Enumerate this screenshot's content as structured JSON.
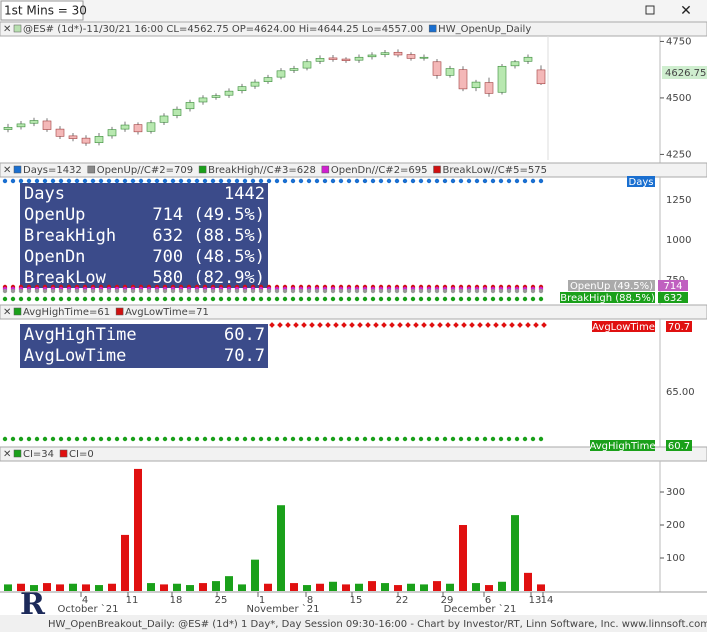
{
  "toolbar": {
    "title": "1st Mins = 30"
  },
  "price_panel": {
    "header": "@ES# (1d*)-11/30/21 16:00 CL=4562.75 OP=4624.00 Hi=4644.25 Lo=4557.00",
    "study": "HW_OpenUp_Daily",
    "ylim": [
      4212,
      4774
    ],
    "yticks": [
      4750,
      4500,
      4250
    ],
    "last_price": "4626.75",
    "open": [
      4360,
      4372,
      4388,
      4398,
      4362,
      4332,
      4322,
      4302,
      4332,
      4362,
      4382,
      4352,
      4392,
      4422,
      4452,
      4482,
      4502,
      4512,
      4532,
      4552,
      4572,
      4592,
      4622,
      4632,
      4662,
      4677,
      4672,
      4667,
      4682,
      4692,
      4702,
      4692,
      4677,
      4660,
      4600,
      4625,
      4545,
      4568,
      4525,
      4642,
      4662,
      4624
    ],
    "high": [
      4385,
      4398,
      4412,
      4410,
      4375,
      4345,
      4335,
      4345,
      4372,
      4395,
      4392,
      4402,
      4432,
      4462,
      4492,
      4512,
      4520,
      4542,
      4562,
      4582,
      4602,
      4632,
      4642,
      4672,
      4688,
      4690,
      4680,
      4692,
      4702,
      4712,
      4715,
      4702,
      4692,
      4672,
      4642,
      4640,
      4580,
      4590,
      4650,
      4668,
      4692,
      4644.25
    ],
    "low": [
      4348,
      4360,
      4375,
      4350,
      4318,
      4308,
      4288,
      4290,
      4320,
      4350,
      4338,
      4342,
      4380,
      4410,
      4440,
      4470,
      4492,
      4500,
      4520,
      4540,
      4562,
      4582,
      4610,
      4622,
      4650,
      4660,
      4655,
      4655,
      4670,
      4680,
      4680,
      4665,
      4665,
      4585,
      4590,
      4530,
      4530,
      4505,
      4515,
      4630,
      4650,
      4557
    ],
    "close": [
      4370,
      4385,
      4400,
      4360,
      4330,
      4320,
      4300,
      4330,
      4360,
      4380,
      4350,
      4390,
      4420,
      4450,
      4480,
      4500,
      4510,
      4530,
      4550,
      4570,
      4590,
      4620,
      4630,
      4660,
      4675,
      4670,
      4665,
      4680,
      4690,
      4700,
      4690,
      4675,
      4680,
      4600,
      4630,
      4540,
      4570,
      4520,
      4640,
      4660,
      4680,
      4562.75
    ]
  },
  "stats_panel": {
    "legend": [
      "Days=1432",
      "OpenUp//C#2=709",
      "BreakHigh//C#3=628",
      "OpenDn//C#2=695",
      "BreakLow//C#5=575"
    ],
    "rows": [
      [
        "Days",
        "1442"
      ],
      [
        "OpenUp",
        "714 (49.5%)"
      ],
      [
        "BreakHigh",
        "632 (88.5%)"
      ],
      [
        "OpenDn",
        "700 (48.5%)"
      ],
      [
        "BreakLow",
        "580 (82.9%)"
      ]
    ],
    "yticks": [
      "1250",
      "1000",
      "750"
    ],
    "flags": [
      "Days",
      "OpenUp (49.5%)",
      "714",
      "BreakHigh (88.5%)",
      "632"
    ]
  },
  "time_panel": {
    "legend": [
      "AvgHighTime=61",
      "AvgLowTime=71"
    ],
    "rows": [
      [
        "AvgHighTime",
        "60.7"
      ],
      [
        "AvgLowTime",
        "70.7"
      ]
    ],
    "yticks": [
      "65.00"
    ],
    "flags": [
      "AvgLowTime",
      "70.7",
      "AvgHighTime",
      "60.7"
    ]
  },
  "ci_panel": {
    "legend": [
      "CI=34",
      "CI=0"
    ],
    "ylim": [
      0,
      394
    ],
    "yticks": [
      300,
      200,
      100
    ],
    "values": [
      20,
      22,
      18,
      24,
      20,
      22,
      20,
      18,
      22,
      170,
      370,
      24,
      20,
      22,
      18,
      24,
      30,
      45,
      20,
      95,
      22,
      260,
      24,
      18,
      22,
      28,
      20,
      22,
      30,
      24,
      18,
      22,
      20,
      30,
      22,
      200,
      24,
      18,
      28,
      230,
      55,
      20
    ],
    "colors": [
      "#1aa01a",
      "#e01010",
      "#1aa01a",
      "#e01010",
      "#e01010",
      "#1aa01a",
      "#e01010",
      "#1aa01a",
      "#e01010",
      "#e01010",
      "#e01010",
      "#1aa01a",
      "#e01010",
      "#1aa01a",
      "#1aa01a",
      "#e01010",
      "#1aa01a",
      "#1aa01a",
      "#1aa01a",
      "#1aa01a",
      "#e01010",
      "#1aa01a",
      "#e01010",
      "#1aa01a",
      "#e01010",
      "#1aa01a",
      "#e01010",
      "#1aa01a",
      "#e01010",
      "#1aa01a",
      "#e01010",
      "#1aa01a",
      "#1aa01a",
      "#e01010",
      "#1aa01a",
      "#e01010",
      "#1aa01a",
      "#e01010",
      "#1aa01a",
      "#1aa01a",
      "#e01010",
      "#e01010"
    ]
  },
  "x_axis": {
    "days": [
      "4",
      "11",
      "18",
      "25",
      "1",
      "8",
      "15",
      "22",
      "29",
      "6",
      "13",
      "14"
    ],
    "months": [
      "October `21",
      "November `21",
      "December `21"
    ]
  },
  "footer": "HW_OpenBreakout_Daily: @ES# (1d*) 1 Day*, Day Session 09:30-16:00 - Chart by Investor/RT, Linn Software, Inc. www.linnsoft.com"
}
